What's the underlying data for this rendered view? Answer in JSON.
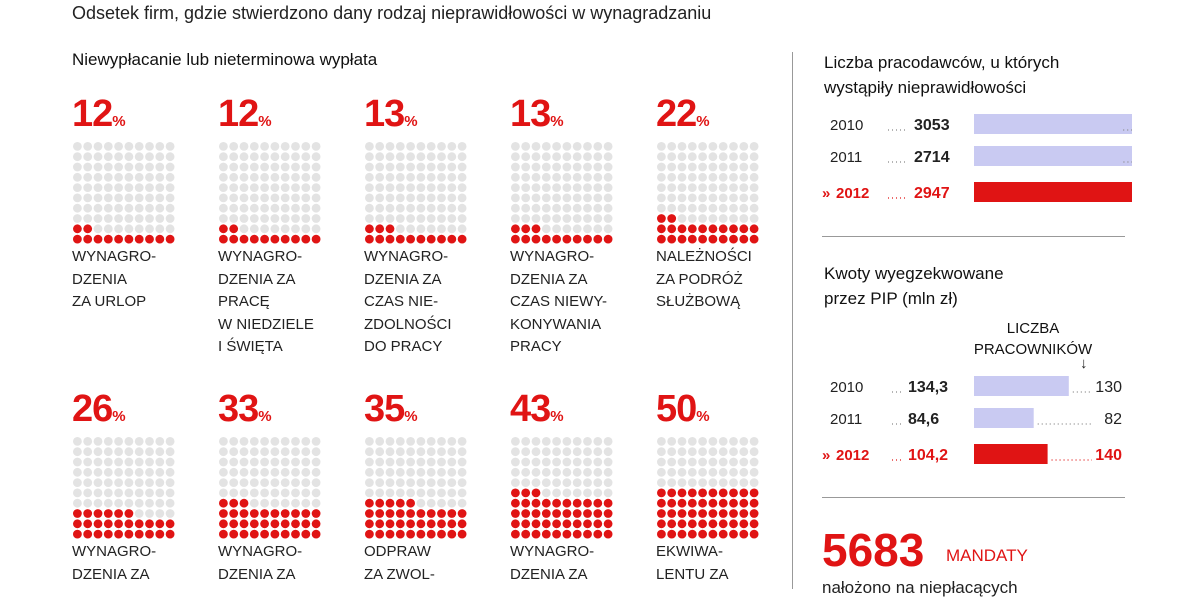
{
  "header": {
    "subtitle": "Odsetek firm, gdzie stwierdzono dany rodzaj nieprawidłowości w wynagradzaniu",
    "section_title": "Niewypłacanie lub nieterminowa wypłata"
  },
  "chart_data": [
    {
      "type": "waffle",
      "title": "Niewypłacanie lub nieterminowa wypłata",
      "unit": "%",
      "grid_total": 100,
      "categories": [
        "WYNAGRODZENIA ZA URLOP",
        "WYNAGRODZENIA ZA PRACĘ W NIEDZIELE I ŚWIĘTA",
        "WYNAGRODZENIA ZA CZAS NIEZDOLNOŚCI DO PRACY",
        "WYNAGRODZENIA ZA CZAS NIEWYKONYWANIA PRACY",
        "NALEŻNOŚCI ZA PODRÓŻ SŁUŻBOWĄ",
        "WYNAGRODZENIA ZA …",
        "WYNAGRODZENIA ZA …",
        "ODPRAW ZA ZWOL…",
        "WYNAGRODZENIA ZA …",
        "EKWIWALENTU ZA …"
      ],
      "values": [
        12,
        12,
        13,
        13,
        22,
        26,
        33,
        35,
        43,
        50
      ],
      "labels": [
        "WYNAGRO-\nDZENIA\nZA URLOP",
        "WYNAGRO-\nDZENIA ZA\nPRACĘ\nW NIEDZIELE\nI ŚWIĘTA",
        "WYNAGRO-\nDZENIA ZA\nCZAS NIE-\nZDOLNOŚCI\nDO PRACY",
        "WYNAGRO-\nDZENIA ZA\nCZAS NIEWY-\nKONYWANIA\nPRACY",
        "NALEŻNOŚCI\nZA PODRÓŻ\nSŁUŻBOWĄ",
        "WYNAGRO-\nDZENIA ZA",
        "WYNAGRO-\nDZENIA ZA",
        "ODPRAW\nZA ZWOL-",
        "WYNAGRO-\nDZENIA ZA",
        "EKWIWA-\nLENTU ZA"
      ],
      "colors": {
        "filled": "#e01414",
        "empty": "#e3e3e3"
      }
    },
    {
      "type": "bar",
      "orientation": "horizontal",
      "title": "Liczba pracodawców, u których\nwystąpiły nieprawidłowości",
      "categories": [
        "2010",
        "2011",
        "2012"
      ],
      "values": [
        3053,
        2714,
        2947
      ],
      "value_labels": [
        "3053",
        "2714",
        "2947"
      ],
      "highlight": "2012",
      "xlim": [
        0,
        3200
      ],
      "colors": {
        "normal": "#c9caf2",
        "highlight": "#e01414"
      }
    },
    {
      "type": "bar",
      "orientation": "horizontal",
      "title": "Kwoty wyegzekwowane\nprzez PIP (mln zł)",
      "categories": [
        "2010",
        "2011",
        "2012"
      ],
      "values": [
        134.3,
        84.6,
        104.2
      ],
      "value_labels": [
        "134,3",
        "84,6",
        "104,2"
      ],
      "secondary_header": "LICZBA\nPRACOWNIKÓW",
      "secondary_values": [
        "130",
        "82",
        "140"
      ],
      "highlight": "2012",
      "xlim": [
        0,
        170
      ],
      "colors": {
        "normal": "#c9caf2",
        "highlight": "#e01414"
      }
    }
  ],
  "right": {
    "arrow_glyph": "↓",
    "mandates_number": "5683",
    "mandates_label": "MANDATY",
    "mandates_text": "nałożono na niepłacących"
  }
}
